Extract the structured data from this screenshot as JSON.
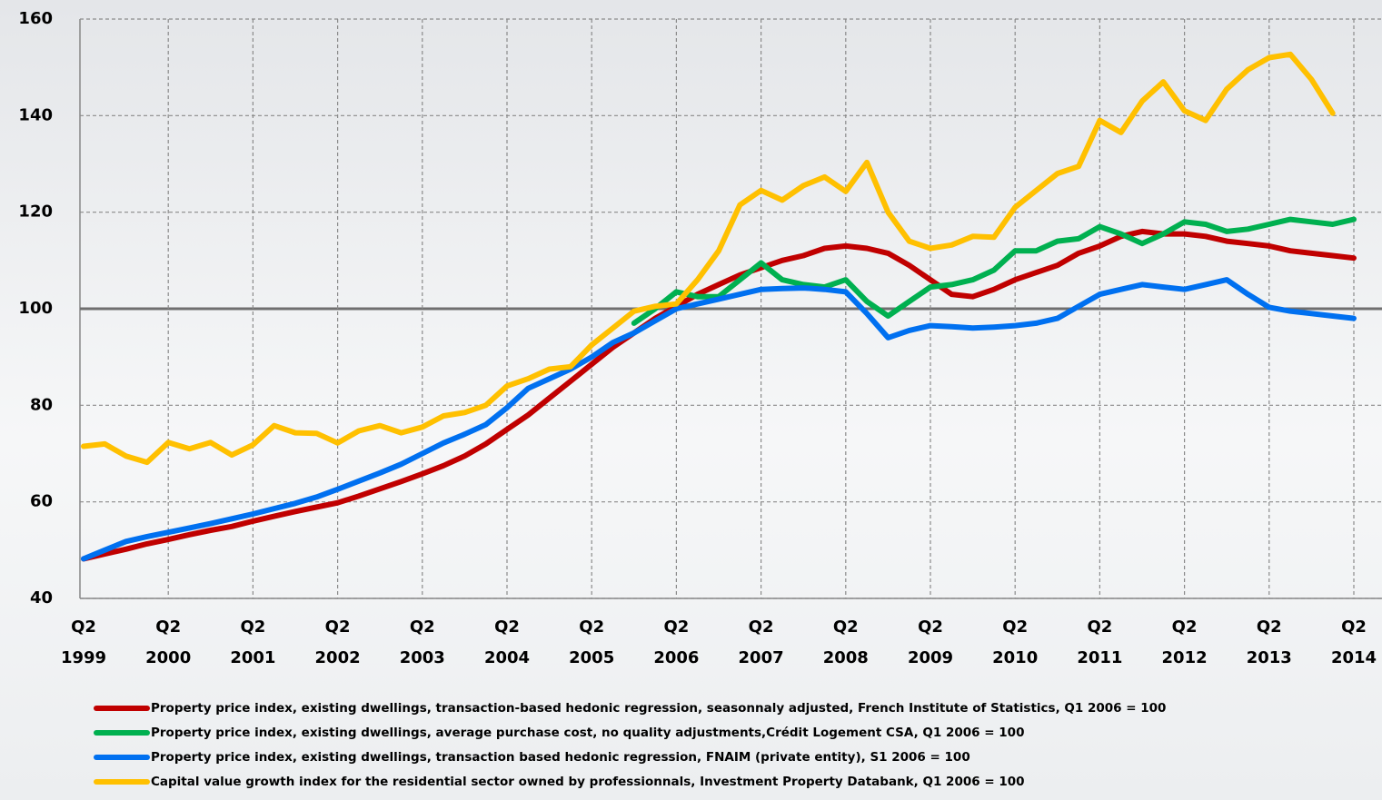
{
  "chart_data": {
    "type": "line",
    "categories": [
      "Q2 1999",
      null,
      null,
      null,
      "Q2 2000",
      null,
      null,
      null,
      "Q2 2001",
      null,
      null,
      null,
      "Q2 2002",
      null,
      null,
      null,
      "Q2 2003",
      null,
      null,
      null,
      "Q2 2004",
      null,
      null,
      null,
      "Q2 2005",
      null,
      null,
      null,
      "Q2 2006",
      null,
      null,
      null,
      "Q2 2007",
      null,
      null,
      null,
      "Q2 2008",
      null,
      null,
      null,
      "Q2 2009",
      null,
      null,
      null,
      "Q2 2010",
      null,
      null,
      null,
      "Q2 2011",
      null,
      null,
      null,
      "Q2 2012",
      null,
      null,
      null,
      "Q2 2013",
      null,
      null,
      null,
      "Q2 2014"
    ],
    "series": [
      {
        "name": "Property price index, existing dwellings, transaction-based hedonic regression, seasonnaly adjusted, French Institute of Statistics, Q1 2006 = 100",
        "color": "#c00000",
        "values": [
          48.2,
          49.2,
          50.2,
          51.3,
          52.2,
          53.2,
          54.1,
          54.9,
          56,
          57,
          58,
          58.9,
          59.8,
          61.2,
          62.7,
          64.2,
          65.8,
          67.5,
          69.5,
          72,
          75,
          78,
          81.5,
          85,
          88.5,
          92,
          95,
          98,
          100.5,
          103,
          105,
          107,
          108.5,
          110,
          111,
          112.5,
          113,
          112.5,
          111.5,
          109,
          106,
          103,
          102.5,
          104,
          106,
          107.5,
          109,
          111.5,
          113,
          115,
          116,
          115.5,
          115.5,
          115,
          114,
          113.5,
          113,
          112,
          111.5,
          111,
          110.5
        ]
      },
      {
        "name": "Property price index, existing dwellings, average purchase cost, no quality adjustments,Crédit Logement CSA, Q1 2006 = 100",
        "color": "#00b050",
        "values": [
          null,
          null,
          null,
          null,
          null,
          null,
          null,
          null,
          null,
          null,
          null,
          null,
          null,
          null,
          null,
          null,
          null,
          null,
          null,
          null,
          null,
          null,
          null,
          null,
          null,
          null,
          97,
          100,
          103.5,
          102.5,
          102.5,
          106,
          109.5,
          106,
          105,
          104.5,
          106,
          101.5,
          98.5,
          101.5,
          104.5,
          105,
          106,
          108,
          112,
          112,
          114,
          114.5,
          117,
          115.5,
          113.5,
          115.5,
          118,
          117.5,
          116,
          116.5,
          117.5,
          118.5,
          118,
          117.5,
          118.5
        ]
      },
      {
        "name": "Property price index, existing dwellings, transaction based hedonic regression, FNAIM (private entity), S1 2006 = 100",
        "color": "#0070f0",
        "values": [
          48.2,
          50,
          51.8,
          52.8,
          53.7,
          54.6,
          55.5,
          56.5,
          57.5,
          58.6,
          59.7,
          61,
          62.6,
          64.3,
          66,
          67.8,
          70,
          72.2,
          74,
          76,
          79.5,
          83.5,
          85.5,
          87.5,
          90,
          93,
          95,
          97.5,
          100,
          101,
          102,
          103,
          104,
          104.2,
          104.3,
          104,
          103.5,
          99,
          94,
          95.5,
          96.5,
          96.3,
          96,
          96.2,
          96.5,
          97,
          98,
          100.5,
          103,
          104,
          105,
          104.5,
          104,
          105,
          106,
          103,
          100.3,
          99.5,
          99,
          98.5,
          98
        ]
      },
      {
        "name": "Capital value growth index for the residential sector owned by professionnals, Investment Property Databank, Q1 2006 = 100",
        "color": "#ffc000",
        "values": [
          71.5,
          72,
          69.5,
          68.2,
          72.3,
          71,
          72.3,
          69.7,
          71.8,
          75.8,
          74.3,
          74.2,
          72.2,
          74.7,
          75.8,
          74.3,
          75.5,
          77.8,
          78.5,
          80,
          84,
          85.5,
          87.5,
          88,
          92.5,
          96,
          99.5,
          100.5,
          101,
          106,
          112,
          121.5,
          124.5,
          122.5,
          125.5,
          127.3,
          124.3,
          130.3,
          120,
          114,
          112.5,
          113.2,
          115,
          114.8,
          121,
          124.5,
          128,
          129.5,
          139,
          136.5,
          143,
          147,
          141,
          139,
          145.5,
          149.5,
          152,
          152.7,
          147.5,
          140.5,
          null
        ]
      }
    ],
    "ylim": [
      40,
      160
    ],
    "yticks": [
      40,
      60,
      80,
      100,
      120,
      140,
      160
    ],
    "grid": true,
    "reference_line": 100,
    "legend": "bottom"
  }
}
